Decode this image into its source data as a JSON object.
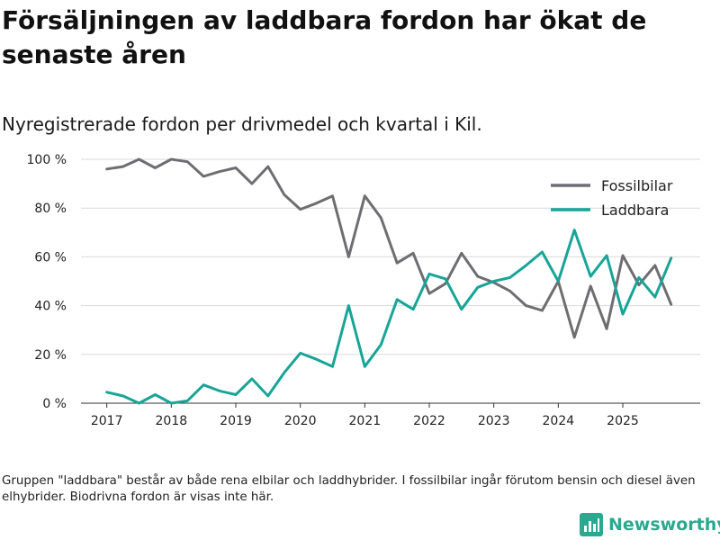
{
  "title": "Försäljningen av laddbara fordon har ökat de senaste åren",
  "subtitle": "Nyregistrerade fordon per drivmedel och kvartal i Kil.",
  "note": "Gruppen \"laddbara\" består av både rena elbilar och laddhybrider. I fossilbilar ingår förutom bensin och diesel även elhybrider. Biodrivna fordon är visas inte här.",
  "brand": {
    "name": "Newsworthy",
    "icon": "newsworthy-logo-icon"
  },
  "chart_data": {
    "type": "line",
    "title": "Försäljningen av laddbara fordon har ökat de senaste åren",
    "subtitle": "Nyregistrerade fordon per drivmedel och kvartal i Kil.",
    "xlabel": "",
    "ylabel": "",
    "ylim": [
      0,
      100
    ],
    "xlim": [
      2016.6,
      2026.2
    ],
    "grid": true,
    "legend_position": "top-right",
    "y_ticks": [
      0,
      20,
      40,
      60,
      80,
      100
    ],
    "y_tick_labels": [
      "0 %",
      "20 %",
      "40 %",
      "60 %",
      "80 %",
      "100 %"
    ],
    "x_ticks": [
      2017,
      2018,
      2019,
      2020,
      2021,
      2022,
      2023,
      2024,
      2025
    ],
    "x_tick_labels": [
      "2017",
      "2018",
      "2019",
      "2020",
      "2021",
      "2022",
      "2023",
      "2024",
      "2025"
    ],
    "x": [
      2017.0,
      2017.25,
      2017.5,
      2017.75,
      2018.0,
      2018.25,
      2018.5,
      2018.75,
      2019.0,
      2019.25,
      2019.5,
      2019.75,
      2020.0,
      2020.25,
      2020.5,
      2020.75,
      2021.0,
      2021.25,
      2021.5,
      2021.75,
      2022.0,
      2022.25,
      2022.5,
      2022.75,
      2023.0,
      2023.25,
      2023.5,
      2023.75,
      2024.0,
      2024.25,
      2024.5,
      2024.75,
      2025.0,
      2025.25,
      2025.5,
      2025.75
    ],
    "series": [
      {
        "name": "Fossilbilar",
        "color": "#6e6d73",
        "values": [
          96,
          97,
          100,
          96.5,
          100,
          99,
          93,
          95,
          96.5,
          90,
          97,
          85.5,
          79.5,
          82,
          85,
          60,
          85,
          76,
          57.5,
          61.5,
          45,
          49,
          61.5,
          52,
          49.5,
          46,
          40,
          38,
          50,
          27,
          48,
          30.5,
          60.5,
          48.5,
          56.5,
          40.5
        ]
      },
      {
        "name": "Laddbara",
        "color": "#18a597",
        "values": [
          4.5,
          3,
          0,
          3.5,
          0,
          1,
          7.5,
          5,
          3.5,
          10,
          3,
          12.5,
          20.5,
          18,
          15,
          40,
          15,
          24,
          42.5,
          38.5,
          53,
          51,
          38.5,
          47.5,
          50,
          51.5,
          56.5,
          62,
          50,
          71,
          52,
          60.5,
          36.5,
          51.5,
          43.5,
          59.5
        ]
      }
    ]
  }
}
